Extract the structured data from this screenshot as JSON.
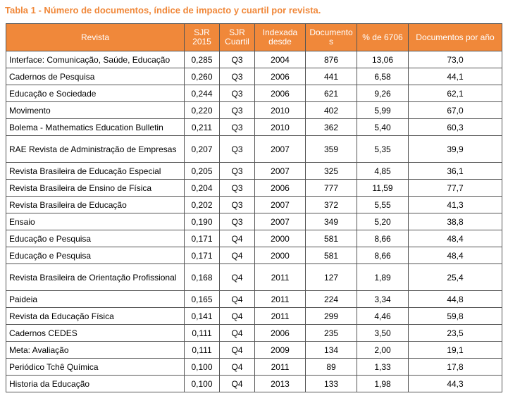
{
  "caption": "Tabla 1 - Número de documentos, índice de impacto y cuartil por revista.",
  "table": {
    "headers": [
      "Revista",
      "SJR 2015",
      "SJR Cuartil",
      "Indexada desde",
      "Documento s",
      "% de 6706",
      "Documentos por año"
    ],
    "rows": [
      [
        "Interface: Comunicação, Saúde, Educação",
        "0,285",
        "Q3",
        "2004",
        "876",
        "13,06",
        "73,0"
      ],
      [
        "Cadernos de Pesquisa",
        "0,260",
        "Q3",
        "2006",
        "441",
        "6,58",
        "44,1"
      ],
      [
        "Educação e Sociedade",
        "0,244",
        "Q3",
        "2006",
        "621",
        "9,26",
        "62,1"
      ],
      [
        "Movimento",
        "0,220",
        "Q3",
        "2010",
        "402",
        "5,99",
        "67,0"
      ],
      [
        "Bolema - Mathematics Education Bulletin",
        "0,211",
        "Q3",
        "2010",
        "362",
        "5,40",
        "60,3"
      ],
      [
        "RAE Revista de Administração de Empresas",
        "0,207",
        "Q3",
        "2007",
        "359",
        "5,35",
        "39,9"
      ],
      [
        "Revista Brasileira de Educação Especial",
        "0,205",
        "Q3",
        "2007",
        "325",
        "4,85",
        "36,1"
      ],
      [
        "Revista Brasileira de Ensino de Física",
        "0,204",
        "Q3",
        "2006",
        "777",
        "11,59",
        "77,7"
      ],
      [
        "Revista Brasileira de Educação",
        "0,202",
        "Q3",
        "2007",
        "372",
        "5,55",
        "41,3"
      ],
      [
        "Ensaio",
        "0,190",
        "Q3",
        "2007",
        "349",
        "5,20",
        "38,8"
      ],
      [
        "Educação e Pesquisa",
        "0,171",
        "Q4",
        "2000",
        "581",
        "8,66",
        "48,4"
      ],
      [
        "Educação e Pesquisa",
        "0,171",
        "Q4",
        "2000",
        "581",
        "8,66",
        "48,4"
      ],
      [
        "Revista Brasileira de Orientação Profissional",
        "0,168",
        "Q4",
        "2011",
        "127",
        "1,89",
        "25,4"
      ],
      [
        "Paideia",
        "0,165",
        "Q4",
        "2011",
        "224",
        "3,34",
        "44,8"
      ],
      [
        "Revista da Educação Física",
        "0,141",
        "Q4",
        "2011",
        "299",
        "4,46",
        "59,8"
      ],
      [
        "Cadernos CEDES",
        "0,111",
        "Q4",
        "2006",
        "235",
        "3,50",
        "23,5"
      ],
      [
        "Meta: Avaliação",
        "0,111",
        "Q4",
        "2009",
        "134",
        "2,00",
        "19,1"
      ],
      [
        "Periódico Tchê Química",
        "0,100",
        "Q4",
        "2011",
        "89",
        "1,33",
        "17,8"
      ],
      [
        "Historia da Educação",
        "0,100",
        "Q4",
        "2013",
        "133",
        "1,98",
        "44,3"
      ]
    ]
  },
  "colors": {
    "accent": "#f0883a",
    "header_text": "#ffffff",
    "border": "#555555"
  }
}
